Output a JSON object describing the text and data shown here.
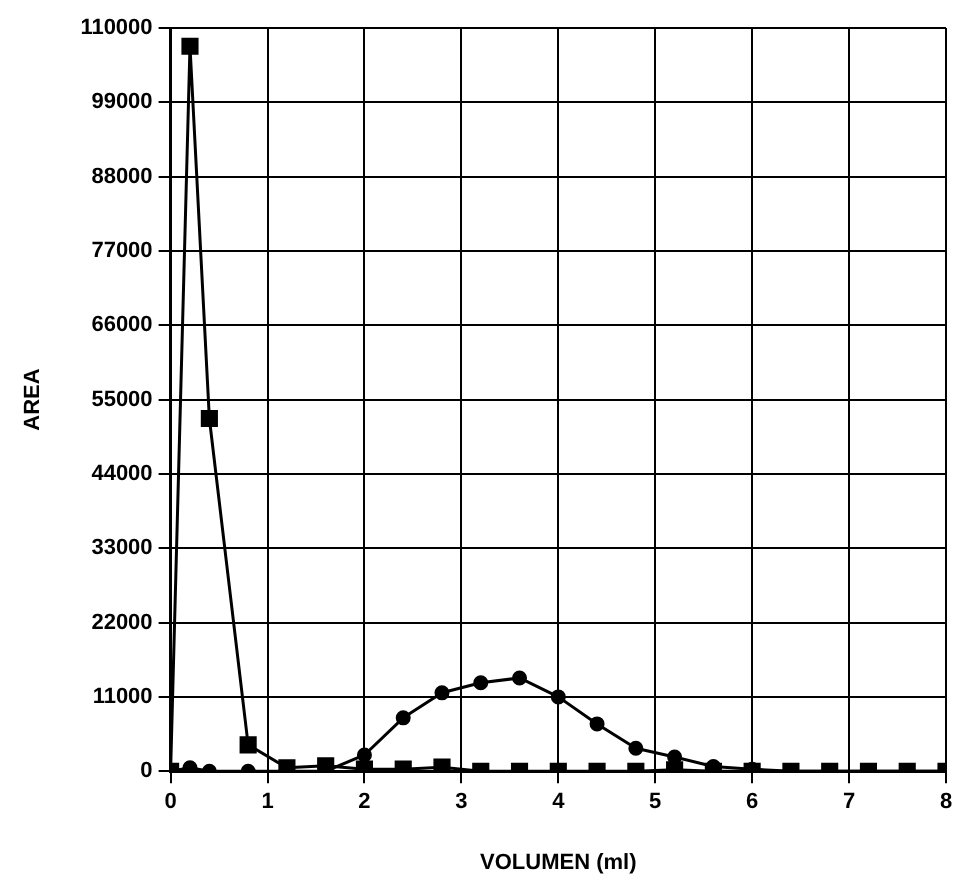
{
  "chart_data": {
    "type": "line",
    "xlabel": "VOLUMEN (ml)",
    "ylabel": "AREA",
    "x": [
      0,
      0.2,
      0.4,
      0.8,
      1.2,
      1.6,
      2.0,
      2.4,
      2.8,
      3.2,
      3.6,
      4.0,
      4.4,
      4.8,
      5.2,
      5.6,
      6.0,
      6.4,
      6.8,
      7.2,
      7.6,
      8.0
    ],
    "series": [
      {
        "color": "#000000",
        "marker": "square",
        "values": [
          0,
          107300,
          52200,
          3900,
          500,
          800,
          300,
          300,
          600,
          0,
          0,
          0,
          0,
          0,
          200,
          0,
          0,
          0,
          0,
          0,
          0,
          0
        ]
      },
      {
        "color": "#000000",
        "marker": "circle",
        "values": [
          0,
          500,
          0,
          0,
          0,
          0,
          2400,
          7900,
          11600,
          13100,
          13800,
          11000,
          7000,
          3400,
          2100,
          700,
          300,
          0,
          0,
          0,
          0,
          0
        ]
      }
    ],
    "xlim": [
      0,
      8
    ],
    "xticks": [
      0,
      1,
      2,
      3,
      4,
      5,
      6,
      7,
      8
    ],
    "ylim": [
      0,
      110000
    ],
    "yticks": [
      0,
      11000,
      22000,
      33000,
      44000,
      55000,
      66000,
      77000,
      88000,
      99000,
      110000
    ],
    "grid": true,
    "legend": false,
    "line_style": "solid"
  }
}
